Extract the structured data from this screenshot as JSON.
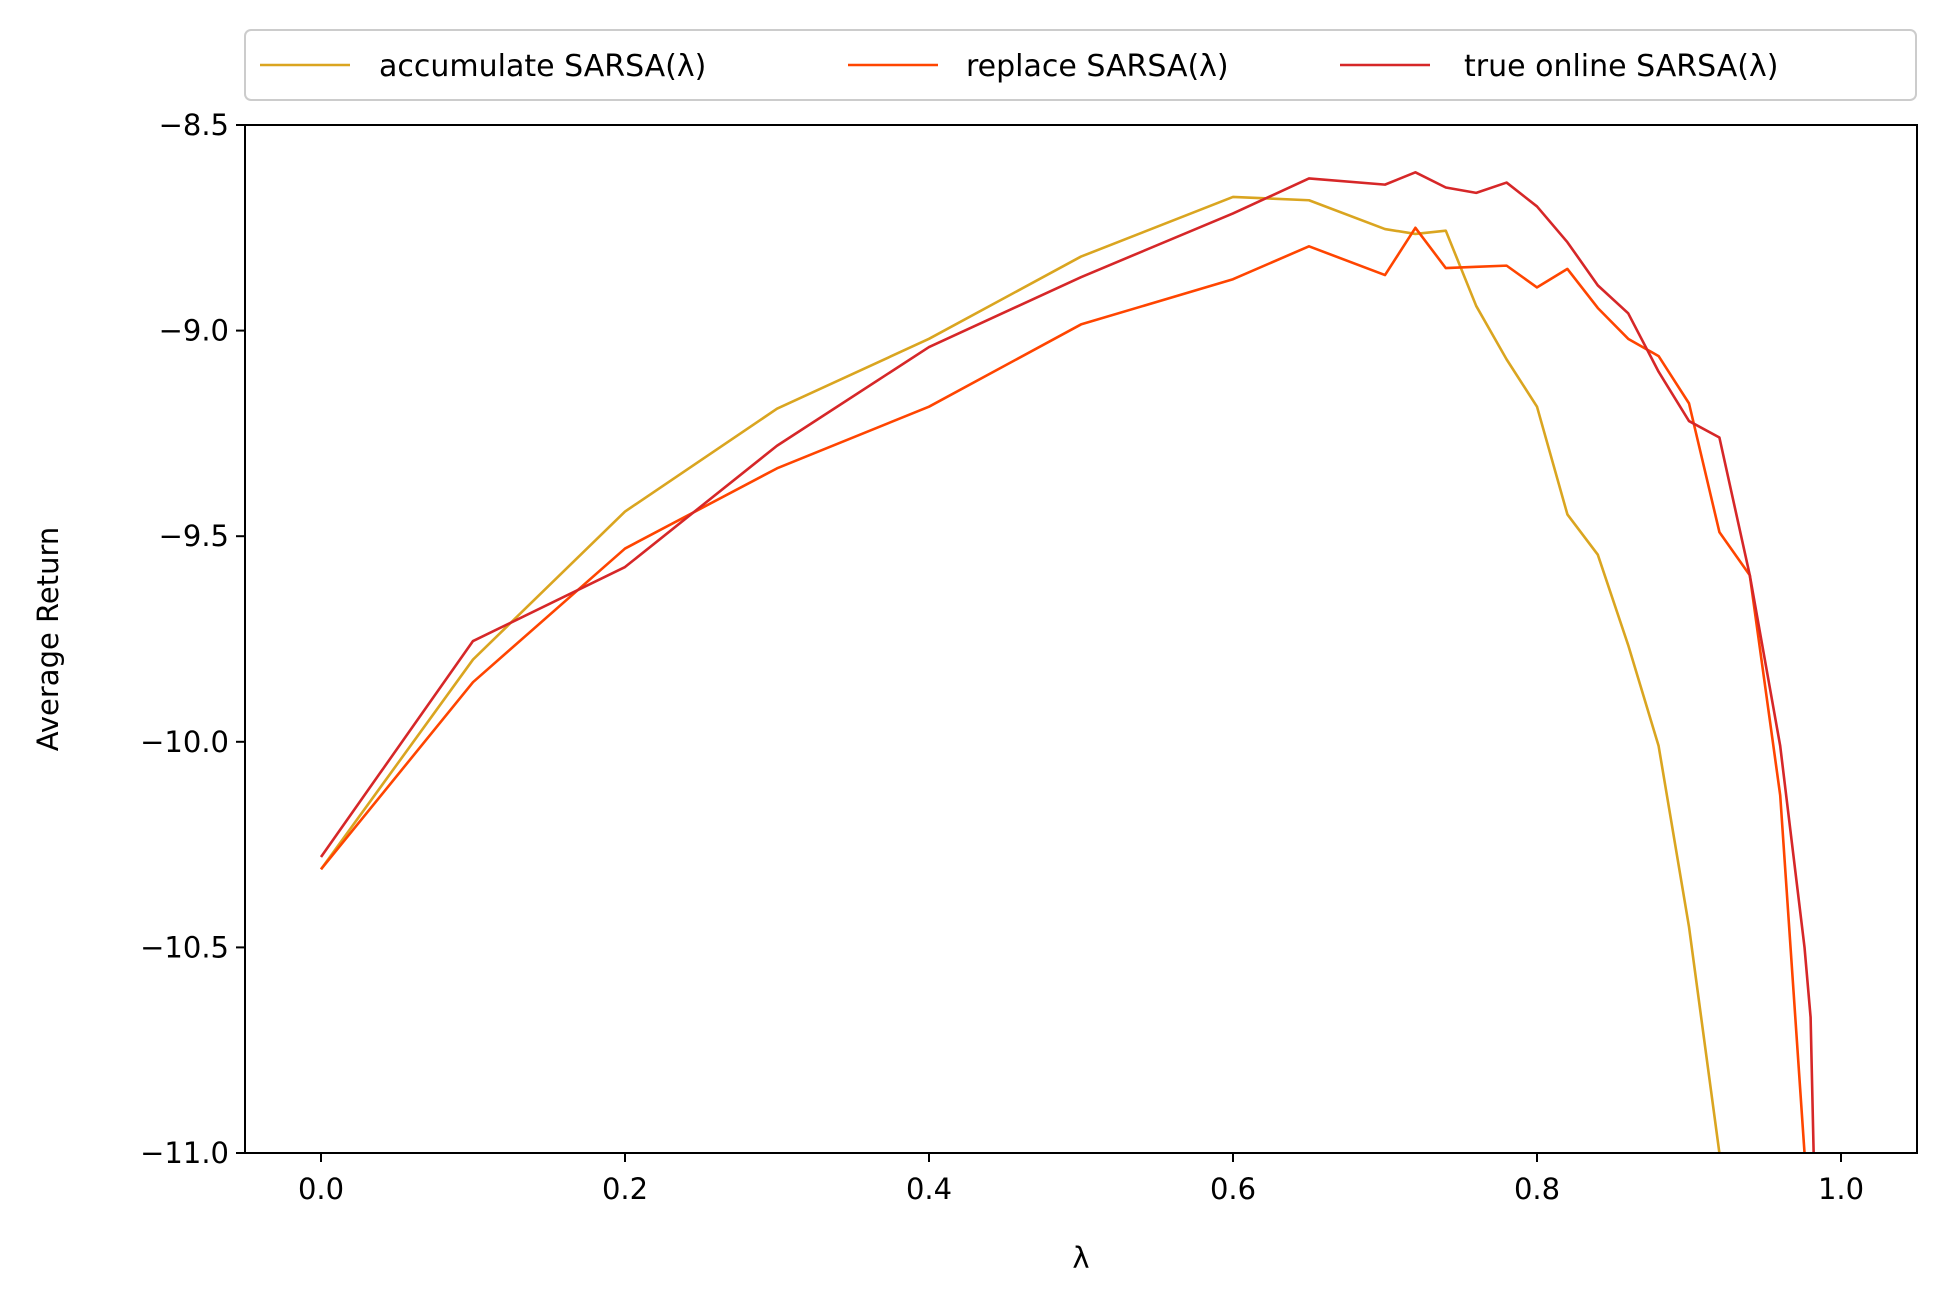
{
  "chart_data": {
    "type": "line",
    "title": "",
    "xlabel": "λ",
    "ylabel": "Average Return",
    "xlim": [
      -0.05,
      1.05
    ],
    "ylim": [
      -11.0,
      -8.5
    ],
    "xticks": [
      0.0,
      0.2,
      0.4,
      0.6,
      0.8,
      1.0
    ],
    "xtick_labels": [
      "0.0",
      "0.2",
      "0.4",
      "0.6",
      "0.8",
      "1.0"
    ],
    "yticks": [
      -11.0,
      -10.5,
      -10.0,
      -9.5,
      -9.0,
      -8.5
    ],
    "ytick_labels": [
      "−11.0",
      "−10.5",
      "−10.0",
      "−9.5",
      "−9.0",
      "−8.5"
    ],
    "grid": false,
    "legend_position": "top",
    "series": [
      {
        "name": "accumulate SARSA(λ)",
        "color": "#DAA520",
        "x": [
          0.0,
          0.1,
          0.2,
          0.3,
          0.4,
          0.5,
          0.6,
          0.65,
          0.7,
          0.72,
          0.74,
          0.76,
          0.78,
          0.8,
          0.82,
          0.84,
          0.86,
          0.88,
          0.9,
          0.92
        ],
        "y": [
          -10.31,
          -9.8,
          -9.44,
          -9.19,
          -9.02,
          -8.82,
          -8.675,
          -8.683,
          -8.753,
          -8.765,
          -8.757,
          -8.94,
          -9.07,
          -9.185,
          -9.447,
          -9.545,
          -9.765,
          -10.01,
          -10.45,
          -11.0
        ]
      },
      {
        "name": "replace SARSA(λ)",
        "color": "#FF4500",
        "x": [
          0.0,
          0.1,
          0.2,
          0.3,
          0.4,
          0.5,
          0.6,
          0.65,
          0.7,
          0.72,
          0.74,
          0.76,
          0.78,
          0.8,
          0.82,
          0.84,
          0.86,
          0.88,
          0.9,
          0.92,
          0.94,
          0.96,
          0.976
        ],
        "y": [
          -10.31,
          -9.855,
          -9.53,
          -9.335,
          -9.185,
          -8.985,
          -8.875,
          -8.795,
          -8.865,
          -8.75,
          -8.848,
          -8.845,
          -8.842,
          -8.895,
          -8.85,
          -8.945,
          -9.02,
          -9.062,
          -9.177,
          -9.49,
          -9.595,
          -10.13,
          -11.0
        ]
      },
      {
        "name": "true online SARSA(λ)",
        "color": "#D62728",
        "x": [
          0.0,
          0.1,
          0.2,
          0.3,
          0.4,
          0.5,
          0.6,
          0.65,
          0.7,
          0.72,
          0.74,
          0.76,
          0.78,
          0.8,
          0.82,
          0.84,
          0.86,
          0.88,
          0.9,
          0.92,
          0.94,
          0.96,
          0.976,
          0.98,
          0.982
        ],
        "y": [
          -10.28,
          -9.755,
          -9.575,
          -9.28,
          -9.04,
          -8.87,
          -8.715,
          -8.63,
          -8.645,
          -8.615,
          -8.652,
          -8.665,
          -8.64,
          -8.698,
          -8.785,
          -8.89,
          -8.958,
          -9.1,
          -9.22,
          -9.26,
          -9.595,
          -10.01,
          -10.5,
          -10.67,
          -11.0
        ]
      }
    ]
  }
}
